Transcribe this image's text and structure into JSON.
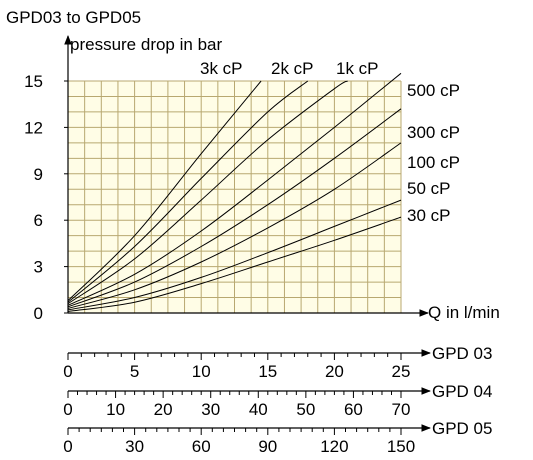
{
  "chart_data": {
    "type": "line",
    "title": "GPD03 to GPD05",
    "ylabel": "pressure drop in bar",
    "xlabel": "Q in  l/min",
    "ylim": [
      0,
      15
    ],
    "xlim": [
      0,
      25
    ],
    "y_ticks": [
      "0",
      "3",
      "6",
      "9",
      "12",
      "15"
    ],
    "grid": true,
    "grid_color": "#b8a870",
    "grid_fill": "#fffde6",
    "series": [
      {
        "name": "30 cP",
        "x": [
          0,
          5,
          10,
          15,
          20,
          25
        ],
        "y": [
          0.1,
          0.7,
          1.9,
          3.3,
          4.7,
          6.2
        ]
      },
      {
        "name": "50 cP",
        "x": [
          0,
          5,
          10,
          15,
          20,
          25
        ],
        "y": [
          0.2,
          1.0,
          2.3,
          3.9,
          5.6,
          7.3
        ]
      },
      {
        "name": "100 cP",
        "x": [
          0,
          5,
          10,
          15,
          20,
          25
        ],
        "y": [
          0.3,
          1.5,
          3.3,
          5.5,
          8.0,
          11.0
        ]
      },
      {
        "name": "300 cP",
        "x": [
          0,
          5,
          10,
          15,
          20,
          25
        ],
        "y": [
          0.4,
          2.0,
          4.3,
          7.0,
          10.0,
          13.2
        ]
      },
      {
        "name": "500 cP",
        "x": [
          0,
          5,
          10,
          15,
          20,
          25
        ],
        "y": [
          0.5,
          2.5,
          5.3,
          8.6,
          12.0,
          15.5
        ]
      },
      {
        "name": "1k cP",
        "x": [
          0,
          5,
          10,
          15,
          20,
          21
        ],
        "y": [
          0.6,
          3.5,
          7.3,
          11.2,
          14.5,
          15.0
        ]
      },
      {
        "name": "2k cP",
        "x": [
          0,
          5,
          10,
          15,
          18
        ],
        "y": [
          0.7,
          4.3,
          8.7,
          13.0,
          15.0
        ]
      },
      {
        "name": "3k cP",
        "x": [
          0,
          5,
          10,
          14.5
        ],
        "y": [
          0.8,
          5.0,
          10.3,
          15.0
        ]
      }
    ],
    "secondary_axes": [
      {
        "name": "GPD 03",
        "ticks": [
          "0",
          "5",
          "10",
          "15",
          "20",
          "25"
        ]
      },
      {
        "name": "GPD 04",
        "ticks": [
          "0",
          "10",
          "20",
          "30",
          "40",
          "50",
          "60",
          "70"
        ]
      },
      {
        "name": "GPD 05",
        "ticks": [
          "0",
          "30",
          "60",
          "90",
          "120",
          "150"
        ]
      }
    ]
  }
}
